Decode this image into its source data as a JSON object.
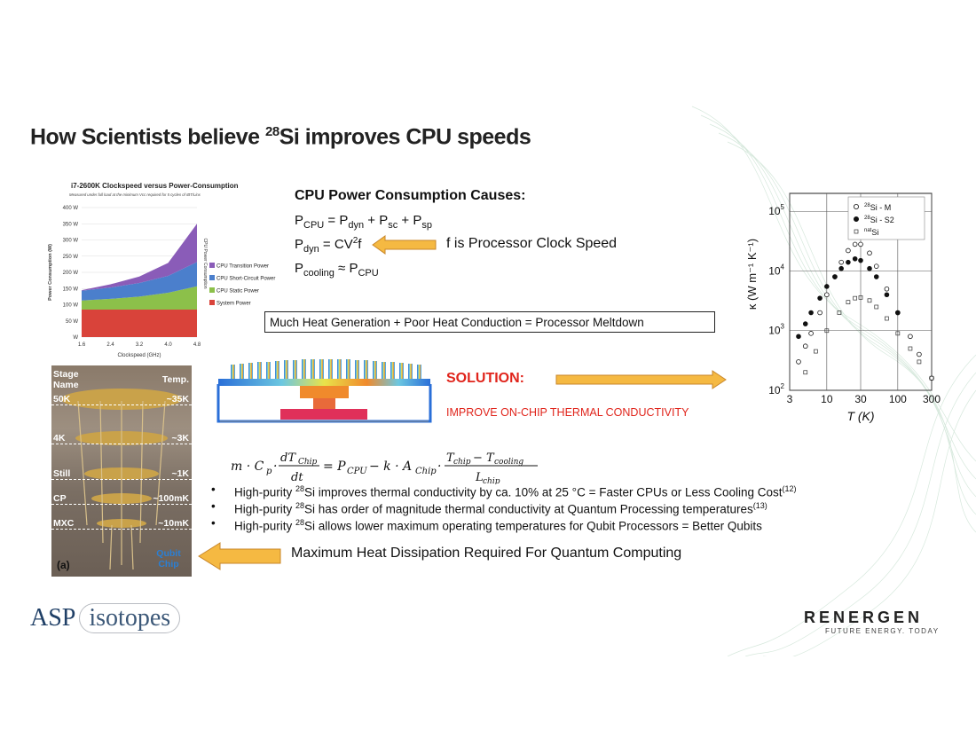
{
  "slide": {
    "title_pre": "How Scientists believe ",
    "title_sup": "28",
    "title_post": "Si improves CPU speeds"
  },
  "causes": {
    "title": "CPU Power Consumption Causes:",
    "freq_label": "f is Processor Clock Speed",
    "meltdown": "Much Heat Generation + Poor Heat Conduction = Processor Meltdown"
  },
  "solution": {
    "label": "SOLUTION:",
    "text": "IMPROVE ON-CHIP THERMAL CONDUCTIVITY"
  },
  "bullets": [
    {
      "pre": "High-purity ",
      "sup": "28",
      "post": "Si improves thermal conductivity by ca. 10% at 25 °C = Faster CPUs or Less Cooling Cost",
      "ref": "(12)"
    },
    {
      "pre": "High-purity ",
      "sup": "28",
      "post": "Si has order of magnitude thermal conductivity at Quantum Processing temperatures",
      "ref": "(13)"
    },
    {
      "pre": "High-purity ",
      "sup": "28",
      "post": "Si allows lower maximum operating temperatures for Qubit Processors = Better Qubits",
      "ref": ""
    }
  ],
  "max_heat": "Maximum Heat Dissipation Required For Quantum Computing",
  "photo": {
    "stage_name": "Stage Name",
    "temp": "Temp.",
    "stages": [
      {
        "name": "50K",
        "temp": "~35K"
      },
      {
        "name": "4K",
        "temp": "~3K"
      },
      {
        "name": "Still",
        "temp": "~1K"
      },
      {
        "name": "CP",
        "temp": "~100mK"
      },
      {
        "name": "MXC",
        "temp": "~10mK"
      }
    ],
    "qubit": "Qubit Chip",
    "panel": "(a)"
  },
  "logos": {
    "asp_main": "ASP",
    "asp_iso": "isotopes",
    "renergen": "RENERGEN",
    "renergen_tag": "FUTURE ENERGY. TODAY"
  },
  "chart_data": [
    {
      "type": "area",
      "title": "i7-2600K Clockspeed versus Power-Consumption",
      "subtitle": "Measured under full load at the minimum Vcc required for 5 cycles of IBT/Linx",
      "xlabel": "Clockspeed (GHz)",
      "ylabel": "Power Consumption (W)",
      "right_label": "CPU Power Consumption",
      "x": [
        1.6,
        2.4,
        3.2,
        4.0,
        4.8
      ],
      "x_ticks": [
        "1.6",
        "2.4",
        "3.2",
        "4.0",
        "4.8"
      ],
      "y_ticks": [
        "W",
        "50 W",
        "100 W",
        "150 W",
        "200 W",
        "250 W",
        "300 W",
        "350 W",
        "400 W"
      ],
      "ylim": [
        0,
        400
      ],
      "stacked": true,
      "series": [
        {
          "name": "System Power",
          "color": "#d9433a",
          "values": [
            85,
            85,
            85,
            85,
            85
          ]
        },
        {
          "name": "CPU Static Power",
          "color": "#8cc04a",
          "values": [
            28,
            33,
            40,
            52,
            72
          ]
        },
        {
          "name": "CPU Short-Circuit Power",
          "color": "#4b7fcc",
          "values": [
            30,
            35,
            42,
            52,
            75
          ]
        },
        {
          "name": "CPU Transition Power",
          "color": "#8a5cb8",
          "values": [
            2,
            10,
            20,
            40,
            118
          ]
        }
      ]
    },
    {
      "type": "scatter",
      "xlabel": "T (K)",
      "ylabel": "κ (W m⁻¹ K⁻¹)",
      "x_scale": "log",
      "y_scale": "log",
      "xlim": [
        3,
        300
      ],
      "ylim": [
        100,
        200000
      ],
      "x_ticks": [
        "3",
        "10",
        "30",
        "100",
        "300"
      ],
      "y_ticks_exp": [
        "2",
        "3",
        "4",
        "5"
      ],
      "grid": true,
      "legend_position": "top-right",
      "series": [
        {
          "name_sup": "28",
          "name": "Si - M",
          "marker": "open-circle",
          "x": [
            4,
            5,
            6,
            8,
            10,
            13,
            16,
            20,
            25,
            30,
            40,
            50,
            70,
            100,
            150,
            200,
            300
          ],
          "y": [
            300,
            550,
            900,
            2000,
            4000,
            8000,
            14000,
            22000,
            28000,
            28000,
            20000,
            12000,
            5000,
            2000,
            800,
            400,
            160
          ]
        },
        {
          "name_sup": "28",
          "name": "Si - S2",
          "marker": "filled-circle",
          "x": [
            4,
            5,
            6,
            8,
            10,
            13,
            16,
            20,
            25,
            30,
            40,
            50,
            70,
            100
          ],
          "y": [
            800,
            1300,
            2000,
            3500,
            5500,
            8000,
            11000,
            14000,
            16000,
            15000,
            11000,
            8000,
            4000,
            2000
          ]
        },
        {
          "name_sup": "nat",
          "name": "Si",
          "marker": "open-square",
          "x": [
            5,
            7,
            10,
            15,
            20,
            25,
            30,
            40,
            50,
            70,
            100,
            150,
            200,
            300
          ],
          "y": [
            200,
            450,
            1000,
            2000,
            3000,
            3500,
            3600,
            3200,
            2500,
            1600,
            900,
            500,
            300,
            160
          ]
        }
      ]
    }
  ]
}
